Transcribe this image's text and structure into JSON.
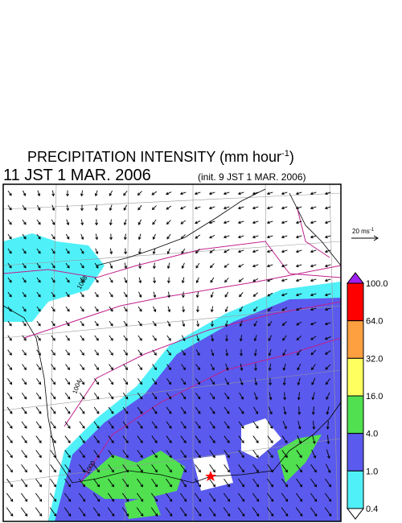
{
  "header": {
    "title_main": "PRECIPITATION INTENSITY (mm hour",
    "title_exp": "-1",
    "title_close": ")",
    "valid_time": "11 JST 1 MAR. 2006",
    "init_time": "(init. 9 JST 1 MAR. 2006)"
  },
  "wind_legend": {
    "label": "20 ms",
    "exp": "-1"
  },
  "colorbar": {
    "labels": [
      "100.0",
      "64.0",
      "32.0",
      "16.0",
      "4.0",
      "1.0",
      "0.4"
    ],
    "colors": [
      "#a020f0",
      "#ff0000",
      "#ffa040",
      "#ffff60",
      "#50e050",
      "#5a5aee",
      "#50f0f8",
      "#ffffff"
    ]
  },
  "isobar_labels": [
    "1008",
    "1004",
    "1000"
  ]
}
